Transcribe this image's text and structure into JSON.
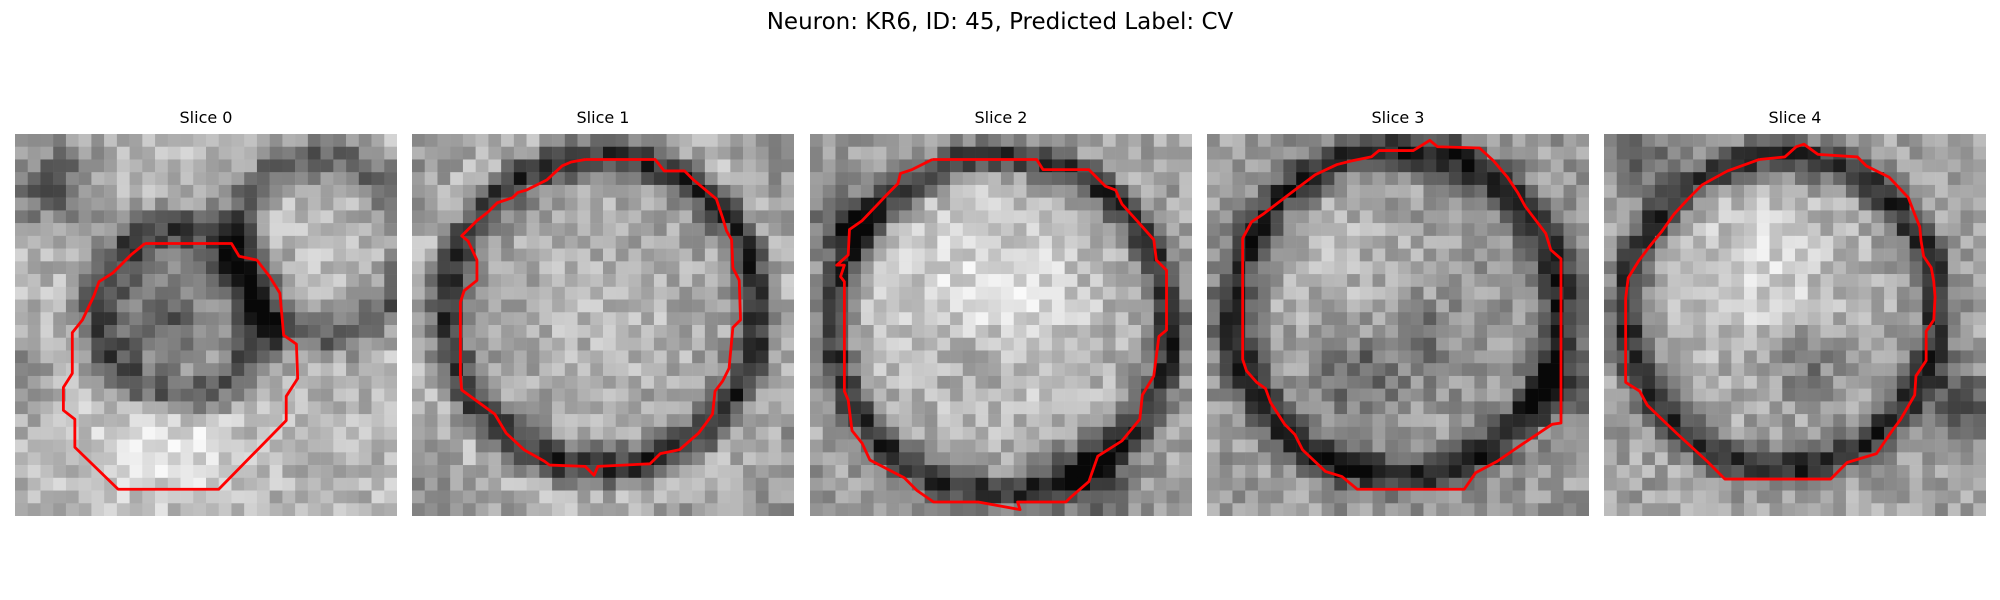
{
  "figure": {
    "title": "Neuron: KR6, ID: 45, Predicted Label: CV"
  },
  "outline_color": "#ff0000",
  "panels": [
    {
      "title": "Slice 0",
      "seed": 11,
      "scene": "small-cell-left"
    },
    {
      "title": "Slice 1",
      "seed": 23,
      "scene": "textured-cell"
    },
    {
      "title": "Slice 2",
      "seed": 37,
      "scene": "bright-cell"
    },
    {
      "title": "Slice 3",
      "seed": 41,
      "scene": "mottled-cell"
    },
    {
      "title": "Slice 4",
      "seed": 53,
      "scene": "bright-cell-dark-ring"
    }
  ]
}
